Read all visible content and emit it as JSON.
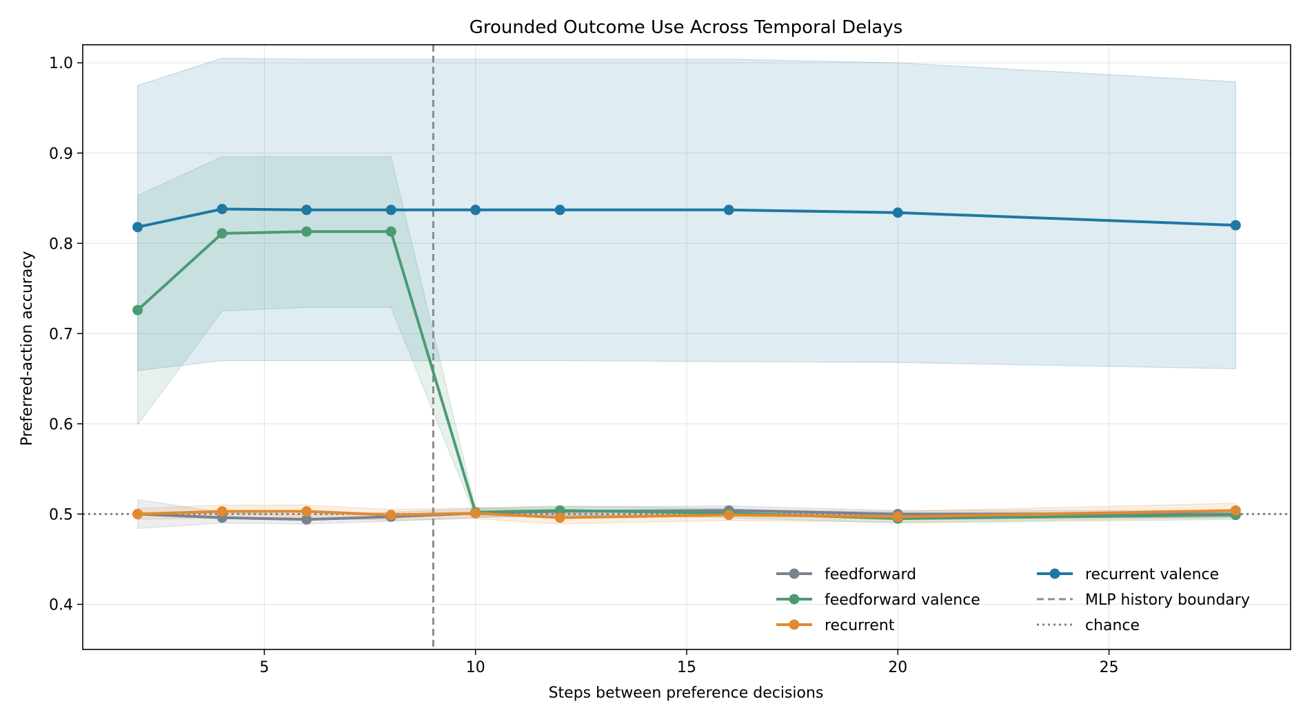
{
  "chart_data": {
    "type": "line",
    "title": "Grounded Outcome Use Across Temporal Delays",
    "xlabel": "Steps between preference decisions",
    "ylabel": "Preferred-action accuracy",
    "xlim": [
      0.7,
      29.3
    ],
    "ylim": [
      0.35,
      1.02
    ],
    "xticks": [
      5,
      10,
      15,
      20,
      25
    ],
    "yticks": [
      0.4,
      0.5,
      0.6,
      0.7,
      0.8,
      0.9,
      1.0
    ],
    "grid": true,
    "legend_placement": "lower-right",
    "x": [
      2,
      4,
      6,
      8,
      10,
      12,
      16,
      20,
      28
    ],
    "series": [
      {
        "name": "feedforward",
        "color": "#7a8290",
        "values": [
          0.5,
          0.496,
          0.494,
          0.497,
          0.501,
          0.503,
          0.504,
          0.5,
          0.5
        ],
        "lower": [
          0.484,
          0.49,
          0.489,
          0.492,
          0.496,
          0.498,
          0.499,
          0.496,
          0.496
        ],
        "upper": [
          0.516,
          0.502,
          0.499,
          0.502,
          0.506,
          0.508,
          0.509,
          0.504,
          0.504
        ]
      },
      {
        "name": "feedforward valence",
        "color": "#4c9a74",
        "values": [
          0.726,
          0.811,
          0.813,
          0.813,
          0.502,
          0.504,
          0.501,
          0.495,
          0.499
        ],
        "lower": [
          0.599,
          0.725,
          0.729,
          0.729,
          0.497,
          0.499,
          0.496,
          0.49,
          0.494
        ],
        "upper": [
          0.853,
          0.896,
          0.896,
          0.896,
          0.507,
          0.509,
          0.506,
          0.5,
          0.504
        ]
      },
      {
        "name": "recurrent",
        "color": "#e08a30",
        "values": [
          0.5,
          0.503,
          0.503,
          0.499,
          0.501,
          0.496,
          0.499,
          0.497,
          0.504
        ],
        "lower": [
          0.494,
          0.496,
          0.496,
          0.493,
          0.495,
          0.489,
          0.493,
          0.491,
          0.496
        ],
        "upper": [
          0.506,
          0.51,
          0.51,
          0.505,
          0.507,
          0.503,
          0.505,
          0.503,
          0.512
        ]
      },
      {
        "name": "recurrent valence",
        "color": "#1f77a3",
        "values": [
          0.818,
          0.838,
          0.837,
          0.837,
          0.837,
          0.837,
          0.837,
          0.834,
          0.82
        ],
        "lower": [
          0.659,
          0.67,
          0.67,
          0.67,
          0.67,
          0.67,
          0.669,
          0.668,
          0.661
        ],
        "upper": [
          0.975,
          1.005,
          1.004,
          1.004,
          1.004,
          1.004,
          1.004,
          1.0,
          0.979
        ]
      }
    ],
    "reference_lines": [
      {
        "name": "MLP history boundary",
        "orientation": "vertical",
        "value": 9,
        "style": "dashed",
        "color": "#8c8c8c"
      },
      {
        "name": "chance",
        "orientation": "horizontal",
        "value": 0.5,
        "style": "dotted",
        "color": "#7f7f7f"
      }
    ]
  }
}
